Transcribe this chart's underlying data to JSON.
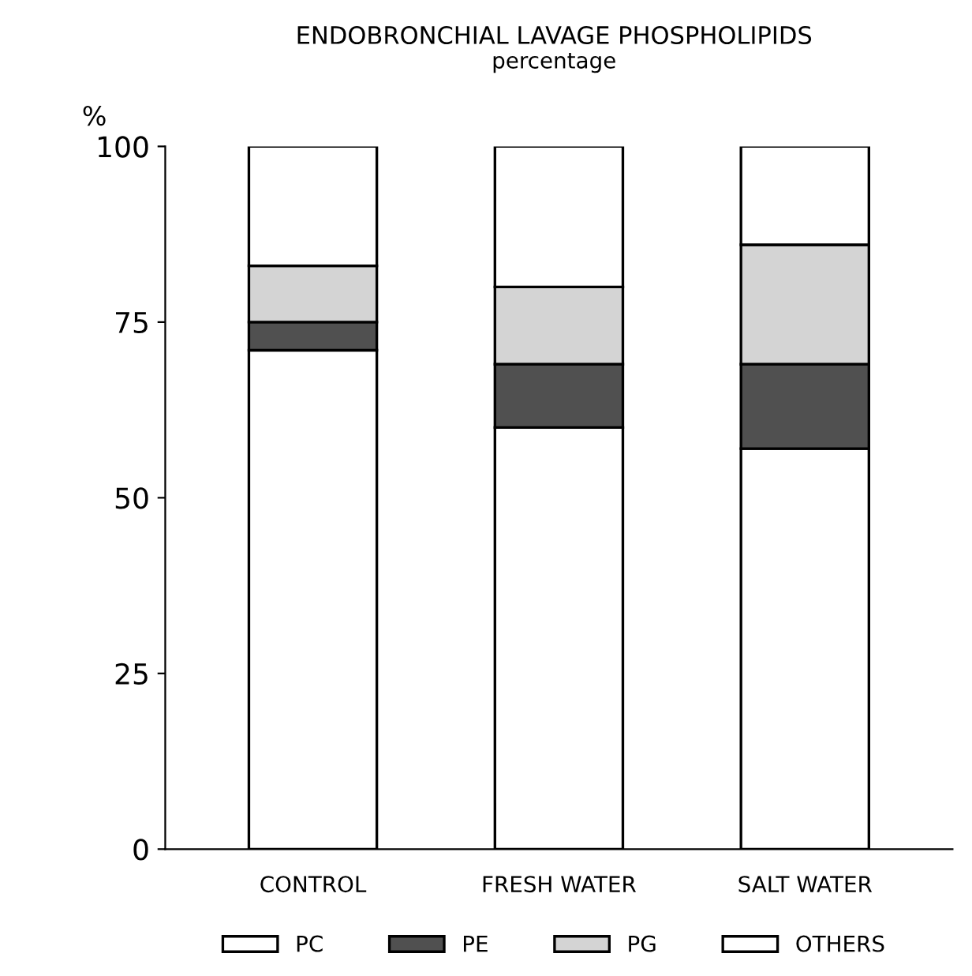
{
  "chart_data": {
    "type": "bar",
    "title": "ENDOBRONCHIAL LAVAGE PHOSPHOLIPIDS",
    "subtitle": "percentage",
    "ylabel": "%",
    "categories": [
      "CONTROL",
      "FRESH WATER",
      "SALT WATER"
    ],
    "stacked": true,
    "series": [
      {
        "name": "PC",
        "color": "#ffffff",
        "values": [
          71,
          60,
          57
        ]
      },
      {
        "name": "PE",
        "color": "#505050",
        "values": [
          4,
          9,
          12
        ]
      },
      {
        "name": "PG",
        "color": "#d4d4d4",
        "values": [
          8,
          11,
          17
        ]
      },
      {
        "name": "OTHERS",
        "color": "#ffffff",
        "values": [
          17,
          20,
          14
        ]
      }
    ],
    "ylim": [
      0,
      100
    ],
    "yticks": [
      0,
      25,
      50,
      75,
      100
    ],
    "grid": false,
    "legend": "bottom"
  }
}
